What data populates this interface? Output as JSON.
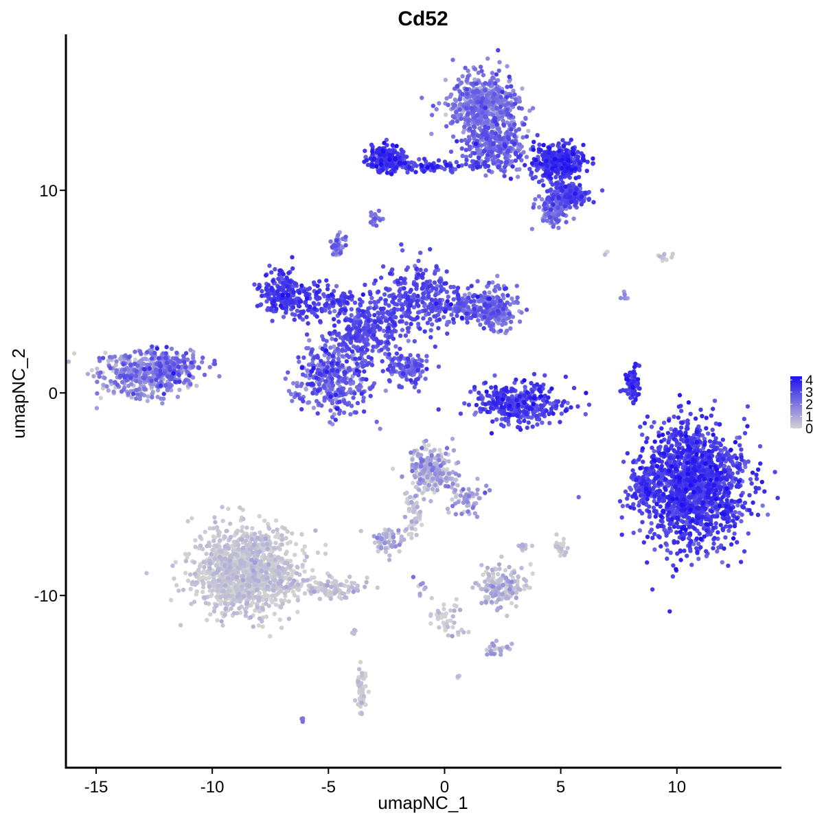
{
  "chart_data": {
    "type": "scatter",
    "title": "Cd52",
    "xlabel": "umapNC_1",
    "ylabel": "umapNC_2",
    "xlim": [
      -16.3,
      14.5
    ],
    "ylim": [
      -18.5,
      17.7
    ],
    "xticks": [
      -15,
      -10,
      -5,
      0,
      5,
      10
    ],
    "xtick_labels": [
      "-15",
      "-10",
      "-5",
      "0",
      "5",
      "10"
    ],
    "yticks": [
      -10,
      0,
      10
    ],
    "ytick_labels": [
      "-10",
      "0",
      "10"
    ],
    "grid": false,
    "color_scale": {
      "low": "#d3d3d3",
      "high": "#1e0ff0",
      "min": 0,
      "max": 4.3
    },
    "legend": {
      "position": "right",
      "ticks": [
        0,
        1,
        2,
        3,
        4
      ],
      "tick_labels": [
        "0",
        "1",
        "2",
        "3",
        "4"
      ]
    },
    "clusters": [
      {
        "n": 380,
        "cx": -13.0,
        "cy": 0.9,
        "sx": 1.0,
        "sy": 0.55,
        "v": 1.4,
        "vsd": 0.8
      },
      {
        "n": 170,
        "cx": -11.8,
        "cy": 1.3,
        "sx": 0.6,
        "sy": 0.4,
        "v": 1.9,
        "vsd": 0.7
      },
      {
        "n": 160,
        "cx": -6.9,
        "cy": 5.0,
        "sx": 0.45,
        "sy": 0.55,
        "v": 3.3,
        "vsd": 0.4
      },
      {
        "n": 150,
        "cx": -5.6,
        "cy": 4.6,
        "sx": 1.0,
        "sy": 0.45,
        "v": 3.0,
        "vsd": 0.4
      },
      {
        "n": 320,
        "cx": -3.4,
        "cy": 3.1,
        "sx": 0.9,
        "sy": 0.9,
        "v": 2.9,
        "vsd": 0.4
      },
      {
        "n": 360,
        "cx": -4.8,
        "cy": 0.6,
        "sx": 0.8,
        "sy": 0.8,
        "v": 2.2,
        "vsd": 0.8
      },
      {
        "n": 240,
        "cx": -1.2,
        "cy": 4.7,
        "sx": 0.8,
        "sy": 0.9,
        "v": 2.9,
        "vsd": 0.4
      },
      {
        "n": 180,
        "cx": 1.0,
        "cy": 4.3,
        "sx": 0.9,
        "sy": 0.45,
        "v": 2.6,
        "vsd": 0.5
      },
      {
        "n": 150,
        "cx": 2.2,
        "cy": 4.0,
        "sx": 0.4,
        "sy": 0.45,
        "v": 2.0,
        "vsd": 0.6
      },
      {
        "n": 110,
        "cx": -1.6,
        "cy": 1.2,
        "sx": 0.45,
        "sy": 0.4,
        "v": 2.6,
        "vsd": 0.5
      },
      {
        "n": 45,
        "cx": -4.6,
        "cy": 7.3,
        "sx": 0.15,
        "sy": 0.25,
        "v": 2.0,
        "vsd": 0.8
      },
      {
        "n": 18,
        "cx": -2.9,
        "cy": 8.6,
        "sx": 0.15,
        "sy": 0.15,
        "v": 2.2,
        "vsd": 0.5
      },
      {
        "n": 190,
        "cx": -2.5,
        "cy": 11.5,
        "sx": 0.4,
        "sy": 0.35,
        "v": 3.3,
        "vsd": 0.5
      },
      {
        "n": 90,
        "cx": -0.4,
        "cy": 11.2,
        "sx": 1.2,
        "sy": 0.15,
        "v": 3.2,
        "vsd": 0.5
      },
      {
        "n": 550,
        "cx": 1.7,
        "cy": 14.2,
        "sx": 0.75,
        "sy": 0.75,
        "v": 1.9,
        "vsd": 0.6
      },
      {
        "n": 280,
        "cx": 2.2,
        "cy": 12.0,
        "sx": 0.7,
        "sy": 0.6,
        "v": 2.3,
        "vsd": 0.6
      },
      {
        "n": 350,
        "cx": 4.9,
        "cy": 11.4,
        "sx": 0.55,
        "sy": 0.45,
        "v": 3.3,
        "vsd": 0.5
      },
      {
        "n": 200,
        "cx": 5.4,
        "cy": 9.8,
        "sx": 0.45,
        "sy": 0.25,
        "v": 2.8,
        "vsd": 0.5
      },
      {
        "n": 110,
        "cx": 4.7,
        "cy": 9.0,
        "sx": 0.35,
        "sy": 0.35,
        "v": 2.1,
        "vsd": 0.6
      },
      {
        "n": 330,
        "cx": 3.1,
        "cy": -0.6,
        "sx": 1.0,
        "sy": 0.5,
        "v": 3.1,
        "vsd": 0.5
      },
      {
        "n": 80,
        "cx": 8.1,
        "cy": 0.4,
        "sx": 0.18,
        "sy": 0.45,
        "v": 3.3,
        "vsd": 0.4
      },
      {
        "n": 1500,
        "cx": 10.7,
        "cy": -4.6,
        "sx": 1.1,
        "sy": 1.45,
        "v": 3.2,
        "vsd": 0.5
      },
      {
        "n": 70,
        "cx": 8.5,
        "cy": -4.6,
        "sx": 0.3,
        "sy": 0.5,
        "v": 3.0,
        "vsd": 0.5
      },
      {
        "n": 1300,
        "cx": -8.6,
        "cy": -8.8,
        "sx": 1.1,
        "sy": 1.0,
        "v": 0.15,
        "vsd": 0.3
      },
      {
        "n": 130,
        "cx": -5.2,
        "cy": -9.6,
        "sx": 0.9,
        "sy": 0.25,
        "v": 0.2,
        "vsd": 0.4
      },
      {
        "n": 240,
        "cx": -0.6,
        "cy": -3.8,
        "sx": 0.5,
        "sy": 0.55,
        "v": 0.7,
        "vsd": 0.7
      },
      {
        "n": 60,
        "cx": 0.9,
        "cy": -5.3,
        "sx": 0.4,
        "sy": 0.4,
        "v": 1.0,
        "vsd": 0.6
      },
      {
        "n": 50,
        "cx": -1.4,
        "cy": -6.0,
        "sx": 0.2,
        "sy": 0.6,
        "v": 0.3,
        "vsd": 0.4
      },
      {
        "n": 60,
        "cx": -2.5,
        "cy": -7.3,
        "sx": 0.35,
        "sy": 0.3,
        "v": 0.6,
        "vsd": 0.6
      },
      {
        "n": 180,
        "cx": 2.5,
        "cy": -9.5,
        "sx": 0.5,
        "sy": 0.5,
        "v": 0.3,
        "vsd": 0.5
      },
      {
        "n": 40,
        "cx": 0.0,
        "cy": -11.2,
        "sx": 0.3,
        "sy": 0.6,
        "v": 0.2,
        "vsd": 0.4
      },
      {
        "n": 25,
        "cx": 2.3,
        "cy": -12.7,
        "sx": 0.3,
        "sy": 0.2,
        "v": 0.8,
        "vsd": 0.5
      },
      {
        "n": 60,
        "cx": -3.6,
        "cy": -14.6,
        "sx": 0.12,
        "sy": 0.6,
        "v": 0.1,
        "vsd": 0.3
      },
      {
        "n": 22,
        "cx": 5.0,
        "cy": -7.6,
        "sx": 0.12,
        "sy": 0.25,
        "v": 0.2,
        "vsd": 0.3
      },
      {
        "n": 14,
        "cx": 3.4,
        "cy": -7.6,
        "sx": 0.12,
        "sy": 0.1,
        "v": 0.3,
        "vsd": 0.3
      },
      {
        "n": 10,
        "cx": 9.6,
        "cy": 6.7,
        "sx": 0.3,
        "sy": 0.15,
        "v": 0.4,
        "vsd": 0.4
      },
      {
        "n": 6,
        "cx": 7.7,
        "cy": 4.7,
        "sx": 0.1,
        "sy": 0.15,
        "v": 1.5,
        "vsd": 0.5
      },
      {
        "n": 8,
        "cx": -1.0,
        "cy": -9.6,
        "sx": 0.15,
        "sy": 0.4,
        "v": 1.2,
        "vsd": 0.6
      },
      {
        "n": 6,
        "cx": 0.8,
        "cy": -11.8,
        "sx": 0.25,
        "sy": 0.1,
        "v": 0.2,
        "vsd": 0.3
      },
      {
        "n": 5,
        "cx": -3.9,
        "cy": -11.9,
        "sx": 0.05,
        "sy": 0.15,
        "v": 0.3,
        "vsd": 0.3
      },
      {
        "n": 4,
        "cx": -6.1,
        "cy": -16.1,
        "sx": 0.05,
        "sy": 0.05,
        "v": 2.0,
        "vsd": 0.3
      },
      {
        "n": 4,
        "cx": 0.6,
        "cy": -14.0,
        "sx": 0.05,
        "sy": 0.05,
        "v": 0.5,
        "vsd": 0.3
      },
      {
        "n": 3,
        "cx": 7.0,
        "cy": 6.9,
        "sx": 0.05,
        "sy": 0.05,
        "v": 0.3,
        "vsd": 0.3
      }
    ]
  }
}
